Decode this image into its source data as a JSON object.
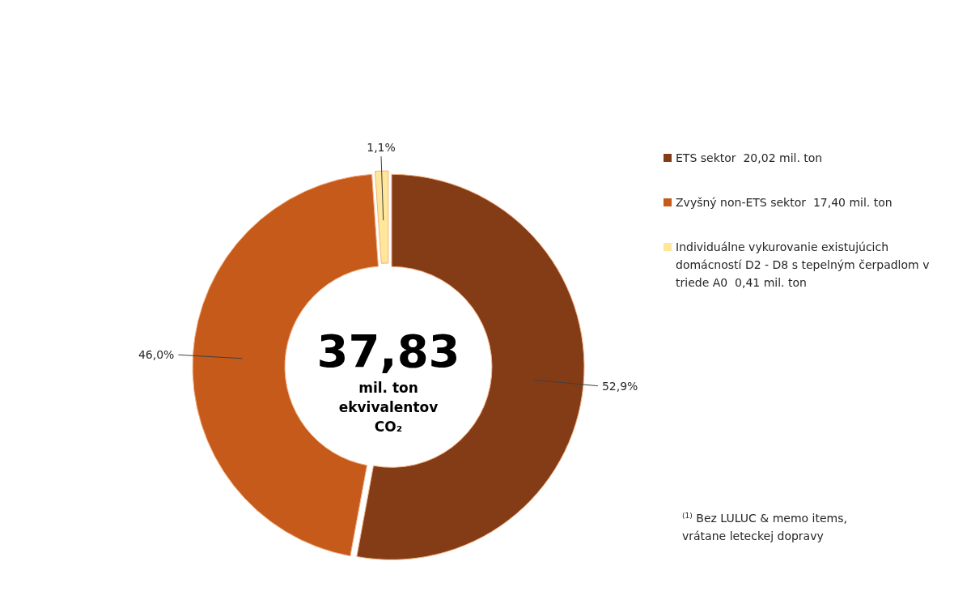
{
  "chart_data": {
    "type": "donut",
    "categories": [
      "ETS sektor  20,02 mil. ton",
      "Zvyšný non-ETS sektor  17,40 mil. ton",
      "Individuálne vykurovanie existujúcich domácností D2 - D8 s tepelným čerpadlom v triede A0  0,41 mil. ton"
    ],
    "values": [
      52.9,
      46.0,
      1.1
    ],
    "colors": [
      "#843c17",
      "#c55a1a",
      "#ffe699"
    ],
    "value_labels": [
      "52,9%",
      "46,0%",
      "1,1%"
    ],
    "legend": "right",
    "annotations": [
      "37,83",
      "mil. ton ekvivalentov CO₂",
      "$^{(1)}$ Bez LULUC & memo items, vrátane leteckej dopravy"
    ]
  }
}
